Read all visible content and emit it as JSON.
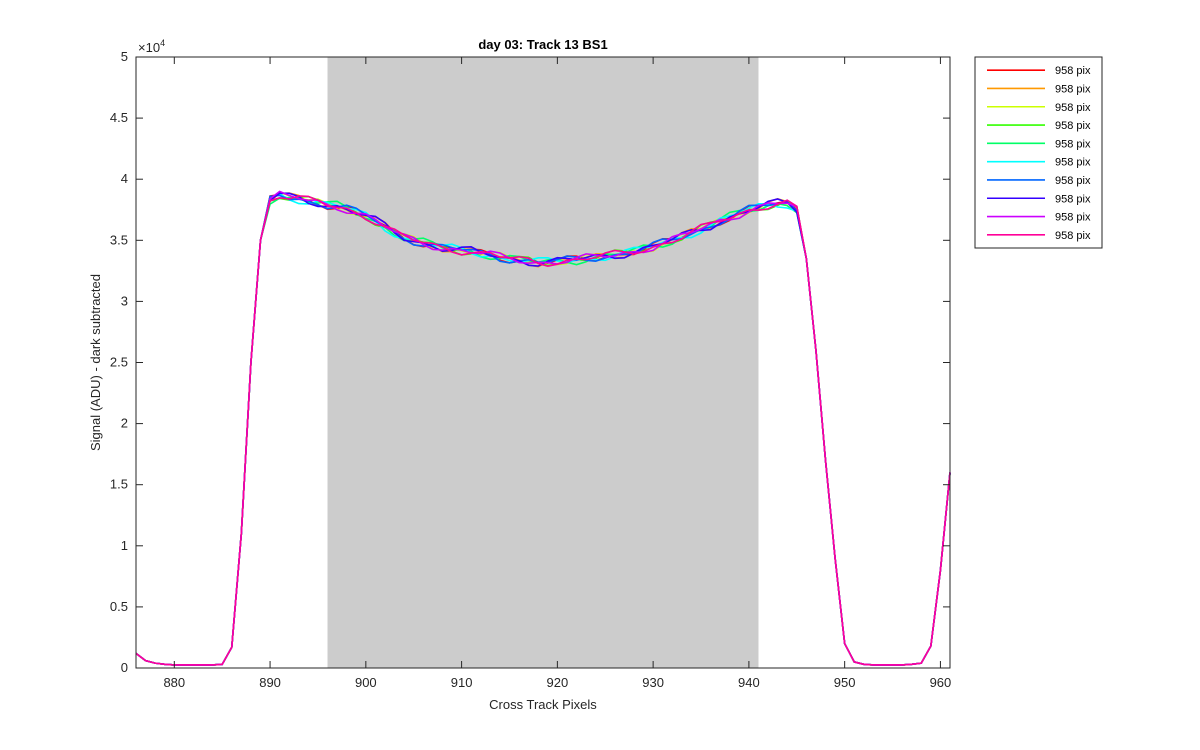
{
  "chart_data": {
    "type": "line",
    "title": "day 03: Track 13  BS1",
    "xlabel": "Cross Track Pixels",
    "ylabel": "Signal (ADU) - dark subtracted",
    "y_exponent_label": "×10",
    "y_exponent_power": "4",
    "xlim": [
      876,
      961
    ],
    "ylim": [
      0,
      50000
    ],
    "x_ticks": [
      880,
      890,
      900,
      910,
      920,
      930,
      940,
      950,
      960
    ],
    "y_ticks": [
      0,
      5000,
      10000,
      15000,
      20000,
      25000,
      30000,
      35000,
      40000,
      45000,
      50000
    ],
    "y_tick_labels": [
      "0",
      "0.5",
      "1",
      "1.5",
      "2",
      "2.5",
      "3",
      "3.5",
      "4",
      "4.5",
      "5"
    ],
    "shaded_region": {
      "x_start": 896,
      "x_end": 941,
      "color": "#cccccc"
    },
    "grid": false,
    "legend_position": "outside-top-right",
    "base_profile": [
      [
        876,
        1200
      ],
      [
        877,
        600
      ],
      [
        878,
        400
      ],
      [
        879,
        300
      ],
      [
        880,
        250
      ],
      [
        881,
        250
      ],
      [
        882,
        250
      ],
      [
        883,
        250
      ],
      [
        884,
        250
      ],
      [
        885,
        300
      ],
      [
        886,
        1700
      ],
      [
        887,
        11000
      ],
      [
        888,
        25000
      ],
      [
        889,
        35000
      ],
      [
        890,
        38300
      ],
      [
        891,
        38700
      ],
      [
        892,
        38500
      ],
      [
        893,
        38400
      ],
      [
        894,
        38200
      ],
      [
        895,
        38100
      ],
      [
        896,
        37900
      ],
      [
        897,
        37800
      ],
      [
        898,
        37600
      ],
      [
        899,
        37300
      ],
      [
        900,
        37000
      ],
      [
        901,
        36600
      ],
      [
        902,
        36100
      ],
      [
        903,
        35600
      ],
      [
        904,
        35200
      ],
      [
        905,
        35000
      ],
      [
        906,
        34800
      ],
      [
        907,
        34600
      ],
      [
        908,
        34400
      ],
      [
        909,
        34300
      ],
      [
        910,
        34200
      ],
      [
        911,
        34100
      ],
      [
        912,
        33900
      ],
      [
        913,
        33800
      ],
      [
        914,
        33600
      ],
      [
        915,
        33500
      ],
      [
        916,
        33400
      ],
      [
        917,
        33300
      ],
      [
        918,
        33200
      ],
      [
        919,
        33250
      ],
      [
        920,
        33300
      ],
      [
        921,
        33350
      ],
      [
        922,
        33400
      ],
      [
        923,
        33500
      ],
      [
        924,
        33600
      ],
      [
        925,
        33700
      ],
      [
        926,
        33800
      ],
      [
        927,
        33950
      ],
      [
        928,
        34100
      ],
      [
        929,
        34300
      ],
      [
        930,
        34500
      ],
      [
        931,
        34750
      ],
      [
        932,
        35000
      ],
      [
        933,
        35300
      ],
      [
        934,
        35600
      ],
      [
        935,
        35900
      ],
      [
        936,
        36200
      ],
      [
        937,
        36600
      ],
      [
        938,
        36900
      ],
      [
        939,
        37200
      ],
      [
        940,
        37500
      ],
      [
        941,
        37700
      ],
      [
        942,
        37900
      ],
      [
        943,
        38000
      ],
      [
        944,
        38000
      ],
      [
        945,
        37500
      ],
      [
        946,
        33500
      ],
      [
        947,
        26000
      ],
      [
        948,
        17000
      ],
      [
        949,
        9000
      ],
      [
        950,
        2000
      ],
      [
        951,
        500
      ],
      [
        952,
        300
      ],
      [
        953,
        250
      ],
      [
        954,
        250
      ],
      [
        955,
        250
      ],
      [
        956,
        250
      ],
      [
        957,
        300
      ],
      [
        958,
        400
      ],
      [
        959,
        1800
      ],
      [
        960,
        8000
      ],
      [
        961,
        16000
      ]
    ],
    "series": [
      {
        "name": "958 pix",
        "color": "#ff0000",
        "noise_seed": 1
      },
      {
        "name": "958 pix",
        "color": "#ff9900",
        "noise_seed": 2
      },
      {
        "name": "958 pix",
        "color": "#ccff00",
        "noise_seed": 3
      },
      {
        "name": "958 pix",
        "color": "#33ff00",
        "noise_seed": 4
      },
      {
        "name": "958 pix",
        "color": "#00ff66",
        "noise_seed": 5
      },
      {
        "name": "958 pix",
        "color": "#00ffff",
        "noise_seed": 6
      },
      {
        "name": "958 pix",
        "color": "#0066ff",
        "noise_seed": 7
      },
      {
        "name": "958 pix",
        "color": "#3300ff",
        "noise_seed": 8
      },
      {
        "name": "958 pix",
        "color": "#cc00ff",
        "noise_seed": 9
      },
      {
        "name": "958 pix",
        "color": "#ff0099",
        "noise_seed": 10
      }
    ]
  }
}
